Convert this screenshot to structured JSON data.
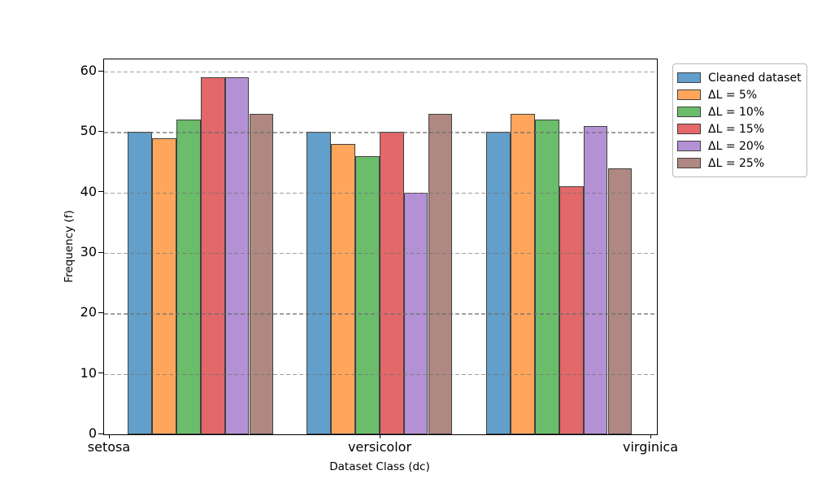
{
  "chart_data": {
    "type": "bar",
    "title": "",
    "xlabel": "Dataset Class (dc)",
    "ylabel": "Frequency (f)",
    "categories": [
      "setosa",
      "versicolor",
      "virginica"
    ],
    "series": [
      {
        "name": "Cleaned dataset",
        "color": "#62A0CB",
        "values": [
          50,
          50,
          50
        ]
      },
      {
        "name": "ΔL = 5%",
        "color": "#FFA65C",
        "values": [
          49,
          48,
          53
        ]
      },
      {
        "name": "ΔL = 10%",
        "color": "#6BBD6B",
        "values": [
          52,
          46,
          52
        ]
      },
      {
        "name": "ΔL = 15%",
        "color": "#E26869",
        "values": [
          59,
          50,
          41
        ]
      },
      {
        "name": "ΔL = 20%",
        "color": "#B491D4",
        "values": [
          59,
          40,
          51
        ]
      },
      {
        "name": "ΔL = 25%",
        "color": "#AE8881",
        "values": [
          53,
          53,
          44
        ]
      }
    ],
    "ylim": [
      0,
      61.9
    ],
    "yticks": [
      0,
      10,
      20,
      30,
      40,
      50,
      60
    ],
    "grid": "horizontal-dashed",
    "grid_color": "#8c8c8c",
    "bar_edge_color": "#404040",
    "legend_position": "outside-upper-right"
  }
}
